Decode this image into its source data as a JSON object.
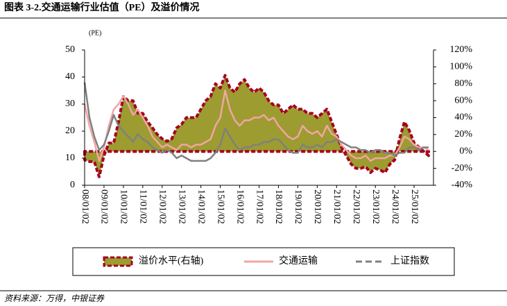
{
  "chart_data": {
    "type": "combo",
    "title": "图表 3-2.交通运输行业估值（PE）及溢价情况",
    "y_label": "(PE)",
    "source": "资料来源：万得，中银证券",
    "x": [
      "08/01/02",
      "08/04/02",
      "08/07/02",
      "08/10/02",
      "09/01/02",
      "09/04/02",
      "09/07/02",
      "09/10/02",
      "10/01/02",
      "10/04/02",
      "10/07/02",
      "10/10/02",
      "11/01/02",
      "11/04/02",
      "11/07/02",
      "11/10/02",
      "12/01/02",
      "12/04/02",
      "12/07/02",
      "12/10/02",
      "13/01/02",
      "13/04/02",
      "13/07/02",
      "13/10/02",
      "14/01/02",
      "14/04/02",
      "14/07/02",
      "14/10/02",
      "15/01/02",
      "15/04/02",
      "15/07/02",
      "15/10/02",
      "16/01/02",
      "16/04/02",
      "16/07/02",
      "16/10/02",
      "17/01/02",
      "17/04/02",
      "17/07/02",
      "17/10/02",
      "18/01/02",
      "18/04/02",
      "18/07/02",
      "18/10/02",
      "19/01/02",
      "19/04/02",
      "19/07/02",
      "19/10/02",
      "20/01/02",
      "20/04/02",
      "20/07/02",
      "20/10/02",
      "21/01/02",
      "21/04/02",
      "21/07/02",
      "21/10/02",
      "22/01/02",
      "22/04/02",
      "22/07/02",
      "22/10/02",
      "23/01/02",
      "23/04/02",
      "23/07/02",
      "23/10/02",
      "24/01/02",
      "24/04/02",
      "24/07/02",
      "24/10/02",
      "25/01/02",
      "25/04/02",
      "25/07/02",
      "25/10/02"
    ],
    "xlim": [
      "08/01/02",
      "26/01/02"
    ],
    "xticks": [
      "08/01/02",
      "09/01/02",
      "10/01/02",
      "11/01/02",
      "12/01/02",
      "13/01/02",
      "14/01/02",
      "15/01/02",
      "16/01/02",
      "17/01/02",
      "18/01/02",
      "19/01/02",
      "20/01/02",
      "21/01/02",
      "22/01/02",
      "23/01/02",
      "24/01/02",
      "25/01/02"
    ],
    "ylim": [
      0,
      50
    ],
    "yticks": [
      0,
      10,
      20,
      30,
      40,
      50
    ],
    "y2lim": [
      -40,
      120
    ],
    "y2ticks": [
      {
        "value": -40,
        "label": "-40%"
      },
      {
        "value": -20,
        "label": "-20%"
      },
      {
        "value": 0,
        "label": "0%"
      },
      {
        "value": 20,
        "label": "20%"
      },
      {
        "value": 40,
        "label": "40%"
      },
      {
        "value": 60,
        "label": "60%"
      },
      {
        "value": 80,
        "label": "80%"
      },
      {
        "value": 100,
        "label": "100%"
      },
      {
        "value": 120,
        "label": "120%"
      }
    ],
    "series": [
      {
        "name": "溢价水平(右轴)",
        "type": "area",
        "axis": "y2",
        "color": "#9c9c30",
        "edge_color": "#a50021",
        "values": [
          -10,
          -12,
          -12,
          -30,
          -5,
          10,
          10,
          35,
          65,
          60,
          60,
          45,
          45,
          35,
          28,
          20,
          15,
          12,
          15,
          28,
          32,
          40,
          40,
          40,
          50,
          60,
          65,
          80,
          75,
          90,
          75,
          70,
          80,
          85,
          75,
          70,
          75,
          70,
          60,
          55,
          55,
          45,
          50,
          55,
          50,
          50,
          45,
          45,
          40,
          45,
          50,
          35,
          20,
          5,
          -5,
          -15,
          -20,
          -20,
          -18,
          -25,
          -20,
          -22,
          -25,
          -15,
          -10,
          15,
          35,
          25,
          10,
          5,
          0,
          -5
        ]
      },
      {
        "name": "交通运输",
        "type": "line",
        "color": "#f2a5a5",
        "values": [
          30,
          22,
          16,
          9,
          14,
          22,
          28,
          30,
          33,
          30,
          26,
          28,
          25,
          22,
          18,
          16,
          14,
          15,
          14,
          13,
          15,
          15,
          14,
          15,
          15,
          16,
          17,
          22,
          25,
          35,
          28,
          24,
          22,
          24,
          24,
          25,
          25,
          26,
          24,
          25,
          22,
          20,
          18,
          17,
          18,
          22,
          20,
          19,
          20,
          18,
          22,
          19,
          18,
          15,
          13,
          11,
          10,
          10,
          11,
          9,
          10,
          10,
          10,
          11,
          11,
          14,
          18,
          17,
          15,
          14,
          14,
          13
        ]
      },
      {
        "name": "上证指数",
        "type": "line",
        "color": "#808080",
        "legend_dash": true,
        "values": [
          38,
          25,
          18,
          13,
          15,
          20,
          26,
          22,
          20,
          18,
          16,
          19,
          17,
          16,
          14,
          13,
          12,
          13,
          12,
          10,
          11,
          10,
          9,
          9,
          9,
          9,
          10,
          12,
          15,
          21,
          18,
          15,
          13,
          14,
          14,
          15,
          15,
          16,
          16,
          17,
          17,
          15,
          13,
          12,
          12,
          15,
          14,
          14,
          15,
          14,
          16,
          16,
          17,
          16,
          15,
          14,
          14,
          13,
          13,
          12,
          13,
          13,
          12,
          12,
          11,
          12,
          12,
          14,
          14,
          13,
          14,
          14
        ]
      }
    ]
  }
}
